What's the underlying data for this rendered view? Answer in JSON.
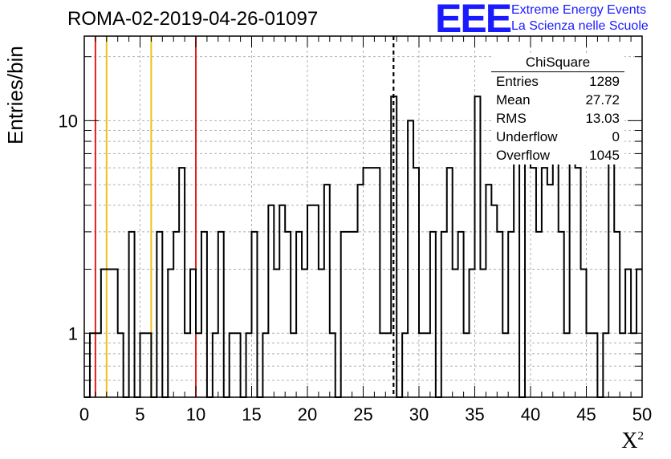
{
  "header": {
    "title": "ROMA-02-2019-04-26-01097",
    "logo_text": "EEE",
    "logo_line1": "Extreme Energy Events",
    "logo_line2": "La Scienza nelle Scuole"
  },
  "stats_box": {
    "title": "ChiSquare",
    "rows": [
      {
        "label": "Entries",
        "value": "1289"
      },
      {
        "label": "Mean",
        "value": "27.72"
      },
      {
        "label": "RMS",
        "value": "13.03"
      },
      {
        "label": "Underflow",
        "value": "0"
      },
      {
        "label": "Overflow",
        "value": "1045"
      }
    ]
  },
  "chart_data": {
    "type": "bar",
    "title": "ROMA-02-2019-04-26-01097",
    "xlabel": "X",
    "xlabel_superscript": "2",
    "ylabel": "Entries/bin",
    "xlim": [
      0,
      50
    ],
    "ylim": [
      0.5,
      25
    ],
    "y_scale": "log",
    "grid": true,
    "bin_width": 0.5,
    "x_ticks": [
      "0",
      "5",
      "10",
      "15",
      "20",
      "25",
      "30",
      "35",
      "40",
      "45",
      "50"
    ],
    "y_ticks": [
      "1",
      "10"
    ],
    "values": [
      0,
      1,
      1,
      2,
      2,
      2,
      1,
      0,
      3,
      0,
      1,
      1,
      0,
      3,
      0,
      2,
      3,
      6,
      1,
      2,
      1,
      3,
      0,
      1,
      3,
      0,
      1,
      1,
      0,
      1,
      3,
      0,
      1,
      4,
      2,
      4,
      3,
      1,
      3,
      2,
      4,
      4,
      2,
      5,
      1,
      0,
      3,
      3,
      3,
      5,
      6,
      6,
      6,
      1,
      1,
      13,
      0,
      1,
      10,
      6,
      1,
      1,
      3,
      0,
      3,
      6,
      2,
      3,
      1,
      2,
      13,
      2,
      5,
      4,
      3,
      1,
      3,
      9,
      0,
      12,
      6,
      3,
      6,
      5,
      8,
      3,
      1,
      10,
      6,
      2,
      1,
      1,
      0,
      1,
      12,
      3,
      1,
      2,
      1,
      2
    ],
    "vertical_lines": [
      {
        "x": 1,
        "color": "#e0201a",
        "style": "solid"
      },
      {
        "x": 2,
        "color": "#f0c020",
        "style": "solid"
      },
      {
        "x": 6,
        "color": "#f0c020",
        "style": "solid"
      },
      {
        "x": 10,
        "color": "#e0201a",
        "style": "solid"
      },
      {
        "x": 27.72,
        "color": "#000000",
        "style": "dashed"
      }
    ]
  }
}
